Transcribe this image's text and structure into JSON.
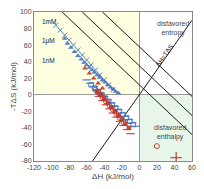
{
  "chart_data": {
    "type": "scatter",
    "xlabel": "ΔH (kJ/mol)",
    "ylabel": "-TΔS (kJ/mol)",
    "xlim": [
      -120,
      60
    ],
    "ylim": [
      -80,
      100
    ],
    "xticks": [
      -120,
      -100,
      -80,
      -60,
      -40,
      -20,
      0,
      20,
      40,
      60
    ],
    "yticks": [
      -80,
      -60,
      -40,
      -20,
      0,
      20,
      40,
      60,
      80,
      100
    ],
    "grid": false,
    "regions": [
      {
        "x": [
          -120,
          0
        ],
        "y": [
          0,
          100
        ],
        "color": "#fefee0"
      },
      {
        "x": [
          0,
          60
        ],
        "y": [
          -80,
          0
        ],
        "color": "#e8f5e9"
      }
    ],
    "series": [
      {
        "type": "line",
        "color": "#1a1a1a",
        "x": [
          -42,
          60
        ],
        "values": [
          100,
          -2
        ]
      },
      {
        "type": "line",
        "color": "#1a1a1a",
        "x": [
          -65,
          60
        ],
        "values": [
          100,
          -25
        ]
      },
      {
        "type": "line",
        "color": "#1a1a1a",
        "x": [
          -88,
          60
        ],
        "values": [
          100,
          -48
        ]
      },
      {
        "type": "line",
        "color": "#1a1a1a",
        "x": [
          -53.333333333333336,
          60
        ],
        "values": [
          -80,
          90
        ]
      },
      {
        "type": "scatter",
        "marker": "triangle",
        "color": "#4472c4",
        "x": [
          -85,
          -82,
          -78,
          -74,
          -70,
          -66,
          -63,
          -60,
          -57,
          -54,
          -51,
          -48,
          -45,
          -42,
          -39,
          -36,
          -33,
          -30,
          -27,
          -24
        ],
        "values": [
          68,
          62,
          57,
          52,
          47,
          43,
          39,
          36,
          33,
          30,
          27,
          24,
          21,
          18,
          15,
          12,
          9,
          7,
          4,
          2
        ]
      },
      {
        "type": "scatter",
        "marker": "x",
        "color": "#4472c4",
        "x": [
          -95,
          -90,
          -85,
          -80,
          -75,
          -70,
          -65,
          -60,
          -55,
          -50,
          -45,
          -40,
          -35,
          -30
        ],
        "values": [
          84,
          78,
          72,
          66,
          60,
          54,
          48,
          42,
          36,
          30,
          24,
          18,
          12,
          6
        ]
      },
      {
        "type": "scatter",
        "marker": "square-open",
        "color": "#4472c4",
        "x": [
          -55,
          -51,
          -47,
          -43,
          -39,
          -35,
          -31,
          -27,
          -23,
          -19,
          -15,
          -11,
          -7
        ],
        "values": [
          12,
          8,
          4,
          0,
          -4,
          -8,
          -12,
          -16,
          -20,
          -24,
          -28,
          -32,
          -36
        ]
      },
      {
        "type": "scatter",
        "marker": "dash",
        "color": "#4472c4",
        "x": [
          -60,
          -56,
          -52,
          -48,
          -44,
          -40,
          -36,
          -32,
          -28,
          -24,
          -20,
          -16,
          -12,
          -8,
          -4
        ],
        "values": [
          18,
          14,
          10,
          6,
          2,
          -2,
          -6,
          -10,
          -14,
          -18,
          -22,
          -26,
          -30,
          -34,
          -38
        ]
      },
      {
        "type": "scatter",
        "marker": "triangle",
        "color": "#c0392b",
        "x": [
          -62,
          -57,
          -52,
          -47,
          -42
        ],
        "values": [
          32,
          26,
          20,
          14,
          8
        ]
      },
      {
        "type": "scatter",
        "marker": "circle-open",
        "color": "#c0392b",
        "x": [
          -50,
          -46,
          -42,
          -38,
          -34,
          -30,
          -26,
          -22,
          -18,
          20
        ],
        "values": [
          6,
          2,
          -3,
          -8,
          -13,
          -18,
          -23,
          -28,
          -33,
          -62
        ]
      },
      {
        "type": "scatter",
        "marker": "square",
        "color": "#c0392b",
        "x": [
          -48,
          -44,
          -40,
          -36,
          -32,
          -28,
          -24,
          -20,
          -16,
          -12
        ],
        "values": [
          4,
          0,
          -5,
          -10,
          -15,
          -20,
          -25,
          -30,
          -35,
          -40
        ]
      },
      {
        "type": "scatter",
        "marker": "dash",
        "color": "#c0392b",
        "x": [
          -46,
          -42,
          -38,
          -34,
          -30,
          -26,
          -22,
          -18,
          -14,
          -10
        ],
        "values": [
          -2,
          -7,
          -12,
          -17,
          -22,
          -27,
          -32,
          -37,
          -42,
          -47
        ]
      },
      {
        "type": "scatter",
        "marker": "plus",
        "color": "#c0392b",
        "x": [
          42
        ],
        "values": [
          -76
        ]
      }
    ],
    "annotations": [
      {
        "text": "1mM",
        "x": -113,
        "y": 88,
        "color": "#1a1a1a"
      },
      {
        "text": "1μM",
        "x": -113,
        "y": 65,
        "color": "#1a1a1a"
      },
      {
        "text": "1nM",
        "x": -113,
        "y": 42,
        "color": "#1a1a1a"
      },
      {
        "text": "ΔH=TΔS",
        "x": 28,
        "y": 48,
        "color": "#1a1a1a"
      },
      {
        "text": "disfavored\nentropy",
        "x": 38,
        "y": 80,
        "color": "#444444"
      },
      {
        "text": "disfavored\nenthalpy",
        "x": 35,
        "y": -45,
        "color": "#444444"
      }
    ]
  }
}
